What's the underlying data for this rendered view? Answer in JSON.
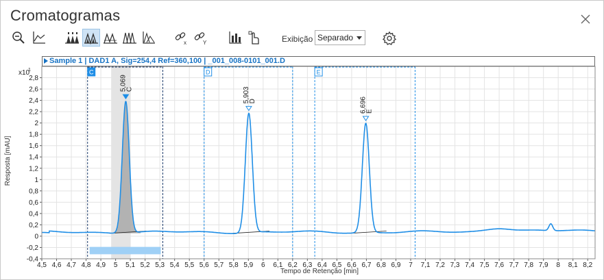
{
  "window": {
    "title": "Cromatogramas"
  },
  "toolbar": {
    "icons": [
      "zoom-out-icon",
      "axis-autoscale-icon",
      "peaks-label-icon",
      "peaks-area-icon",
      "peaks-baseline-icon",
      "peaks-overlay-icon",
      "peaks-stack-icon",
      "link-x-icon",
      "link-y-icon",
      "integration-icon",
      "manual-select-icon"
    ],
    "view_label": "Exibição",
    "view_value": "Separado"
  },
  "sample": {
    "label": "Sample 1 | DAD1 A, Sig=254,4 Ref=360,100 | _001_008-0101_001.D"
  },
  "chart_data": {
    "type": "line",
    "title": "",
    "xlabel": "Tempo de Retenção [min]",
    "ylabel": "Resposta [mAU]",
    "y_multiplier_label": "x10",
    "y_multiplier_exp": "1",
    "xlim": [
      4.5,
      8.25
    ],
    "ylim": [
      -0.4,
      3.0
    ],
    "x_ticks": [
      4.5,
      4.6,
      4.7,
      4.8,
      4.9,
      5,
      5.1,
      5.2,
      5.3,
      5.4,
      5.5,
      5.6,
      5.7,
      5.8,
      5.9,
      6,
      6.1,
      6.2,
      6.3,
      6.4,
      6.5,
      6.6,
      6.7,
      6.8,
      6.9,
      7,
      7.1,
      7.2,
      7.3,
      7.4,
      7.5,
      7.6,
      7.7,
      7.8,
      7.9,
      8,
      8.1,
      8.2
    ],
    "x_tick_labels": [
      "4,5",
      "4,6",
      "4,7",
      "4,8",
      "4,9",
      "5",
      "5,1",
      "5,2",
      "5,3",
      "5,4",
      "5,5",
      "5,6",
      "5,7",
      "5,8",
      "5,9",
      "6",
      "6,1",
      "6,2",
      "6,3",
      "6,4",
      "6,5",
      "6,6",
      "6,7",
      "6,8",
      "6,9",
      "7",
      "7,1",
      "7,2",
      "7,3",
      "7,4",
      "7,5",
      "7,6",
      "7,7",
      "7,8",
      "7,9",
      "8",
      "8,1",
      "8,2"
    ],
    "y_ticks": [
      -0.4,
      -0.2,
      0,
      0.2,
      0.4,
      0.6,
      0.8,
      1,
      1.2,
      1.4,
      1.6,
      1.8,
      2,
      2.2,
      2.4,
      2.6,
      2.8
    ],
    "y_tick_labels": [
      "-0,4",
      "-0,2",
      "0",
      "0,2",
      "0,4",
      "0,6",
      "0,8",
      "1",
      "1,2",
      "1,4",
      "1,6",
      "1,8",
      "2",
      "2,2",
      "2,4",
      "2,6",
      "2,8"
    ],
    "grid": true,
    "baseline": 0.07,
    "peaks": [
      {
        "label": "C",
        "rt_label": "5,069",
        "rt": 5.069,
        "height": 2.4,
        "width": 0.035,
        "selected": true
      },
      {
        "label": "D",
        "rt_label": "5,903",
        "rt": 5.903,
        "height": 2.18,
        "width": 0.035,
        "selected": false
      },
      {
        "label": "E",
        "rt_label": "6,696",
        "rt": 6.696,
        "height": 2.0,
        "width": 0.035,
        "selected": false
      }
    ],
    "windows": [
      {
        "label": "C",
        "x0": 4.81,
        "x1": 5.32,
        "selected": true
      },
      {
        "label": "D",
        "x0": 5.6,
        "x1": 6.2,
        "selected": false
      },
      {
        "label": "E",
        "x0": 6.35,
        "x1": 7.03,
        "selected": false
      }
    ],
    "selected_band": [
      4.97,
      5.1
    ],
    "colors": {
      "trace": "#1f8ee6",
      "window": "#1f8ee6",
      "grid": "#e3e3e3",
      "fill": "#a9a9a9",
      "band": "#9fd0f6"
    }
  }
}
